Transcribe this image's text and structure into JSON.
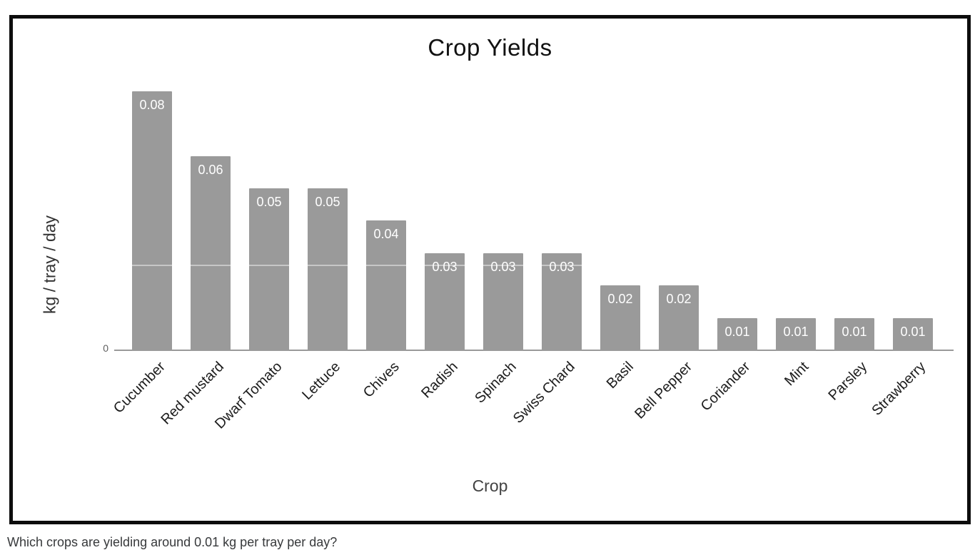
{
  "chart_data": {
    "type": "bar",
    "title": "Crop Yields",
    "xlabel": "Crop",
    "ylabel": "kg / tray / day",
    "categories": [
      "Cucumber",
      "Red mustard",
      "Dwarf Tomato",
      "Lettuce",
      "Chives",
      "Radish",
      "Spinach",
      "Swiss Chard",
      "Basil",
      "Bell Pepper",
      "Coriander",
      "Mint",
      "Parsley",
      "Strawberry"
    ],
    "values": [
      0.08,
      0.06,
      0.05,
      0.05,
      0.04,
      0.03,
      0.03,
      0.03,
      0.02,
      0.02,
      0.01,
      0.01,
      0.01,
      0.01
    ],
    "bar_labels": [
      "0.08",
      "0.06",
      "0.05",
      "0.05",
      "0.04",
      "0.03",
      "0.03",
      "0.03",
      "0.02",
      "0.02",
      "0.01",
      "0.01",
      "0.01",
      "0.01"
    ],
    "y_tick_labels": [
      "0"
    ],
    "ylim": [
      0,
      0.08
    ],
    "legend": "none",
    "grid": "off",
    "bar_color": "#9a9a9a",
    "bar_label_color": "#ffffff"
  },
  "question": {
    "text": "Which crops are yielding around 0.01 kg per tray per day?"
  }
}
